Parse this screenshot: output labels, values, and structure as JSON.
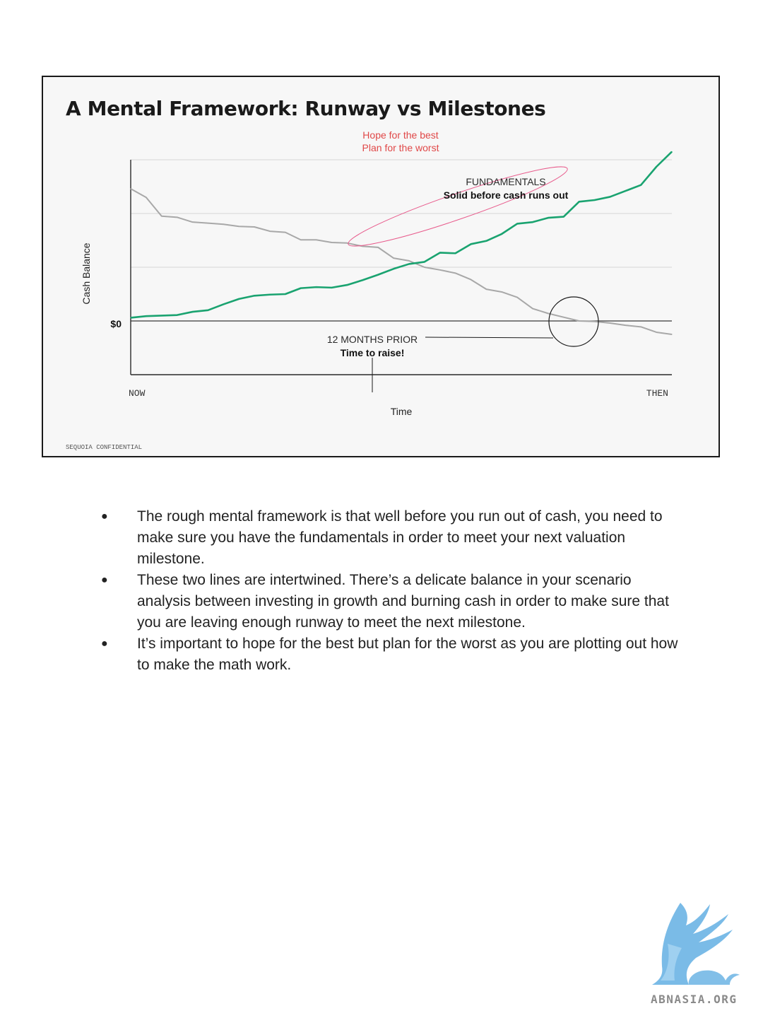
{
  "slide": {
    "title": "A Mental Framework: Runway vs Milestones",
    "footer": "SEQUOIA CONFIDENTIAL"
  },
  "chart_data": {
    "type": "line",
    "title": "",
    "xlabel": "Time",
    "ylabel": "Cash Balance",
    "x_tick_labels": [
      "NOW",
      "THEN"
    ],
    "zero_label": "$0",
    "ylim": [
      -1,
      3
    ],
    "grid": true,
    "x": [
      0,
      1,
      2,
      3,
      4,
      5,
      6,
      7,
      8,
      9,
      10,
      11,
      12,
      13,
      14,
      15,
      16,
      17,
      18,
      19,
      20,
      21,
      22,
      23,
      24,
      25,
      26,
      27,
      28,
      29,
      30,
      31,
      32,
      33,
      34,
      35
    ],
    "series": [
      {
        "name": "",
        "color": "#a8a8a8",
        "values": [
          2.46,
          2.3,
          1.95,
          1.93,
          1.84,
          1.82,
          1.8,
          1.76,
          1.75,
          1.67,
          1.65,
          1.51,
          1.51,
          1.46,
          1.45,
          1.39,
          1.37,
          1.17,
          1.12,
          1.0,
          0.95,
          0.89,
          0.77,
          0.59,
          0.54,
          0.44,
          0.23,
          0.14,
          0.07,
          0.0,
          -0.01,
          -0.04,
          -0.08,
          -0.11,
          -0.21,
          -0.25
        ]
      },
      {
        "name": "",
        "color": "#1aa370",
        "values": [
          0.06,
          0.09,
          0.1,
          0.11,
          0.17,
          0.2,
          0.31,
          0.41,
          0.47,
          0.49,
          0.5,
          0.61,
          0.63,
          0.62,
          0.67,
          0.76,
          0.86,
          0.97,
          1.06,
          1.1,
          1.27,
          1.26,
          1.43,
          1.49,
          1.62,
          1.81,
          1.84,
          1.92,
          1.94,
          2.22,
          2.25,
          2.31,
          2.42,
          2.53,
          2.87,
          3.15
        ]
      }
    ],
    "annotations": {
      "hope_best": "Hope for the best",
      "plan_worst": "Plan for the worst",
      "fundamentals_heading": "FUNDAMENTALS",
      "fundamentals_sub": "Solid before cash runs out",
      "months_heading": "12 MONTHS PRIOR",
      "months_sub": "Time to raise!"
    },
    "colors": {
      "annotation_red": "#e04848",
      "ellipse_pink": "#e85b8c"
    }
  },
  "bullets": [
    "The rough mental framework is that well before you run out of cash, you need to make sure you have the fundamentals in order to meet your next valuation milestone.",
    "These two lines are intertwined. There’s a delicate balance in your scenario analysis between investing in growth and burning cash in order to make sure that you are leaving enough runway to meet the next milestone.",
    "It’s important to hope for the best but plan for the worst as you are plotting out how to make the math work."
  ],
  "bullet_symbol": "●",
  "watermark": {
    "text": "ABNASIA.ORG",
    "color": "#6cb4e4"
  }
}
